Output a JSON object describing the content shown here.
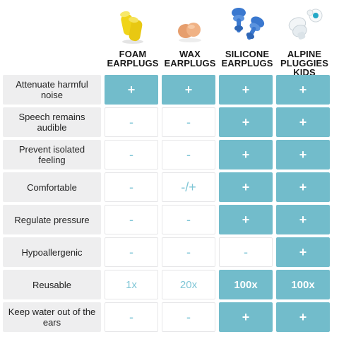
{
  "products": [
    {
      "name": "FOAM EARPLUGS",
      "icon": "foam-earplug-icon",
      "color": "#f2dc2a"
    },
    {
      "name": "WAX EARPLUGS",
      "icon": "wax-earplug-icon",
      "color": "#e9a77a"
    },
    {
      "name": "SILICONE EARPLUGS",
      "icon": "silicone-earplug-icon",
      "color": "#3f7fd1"
    },
    {
      "name": "ALPINE PLUGGIES KIDS",
      "icon": "alpine-pluggies-icon",
      "color": "#e8eef2"
    }
  ],
  "colors": {
    "highlight": "#72bccb",
    "symbol_light": "#7fc6d6",
    "feature_bg": "#eeeeef"
  },
  "rows": [
    {
      "feature": "Attenuate harmful noise",
      "values": [
        {
          "text": "+",
          "highlight": true
        },
        {
          "text": "+",
          "highlight": true
        },
        {
          "text": "+",
          "highlight": true
        },
        {
          "text": "+",
          "highlight": true
        }
      ]
    },
    {
      "feature": "Speech remains audible",
      "values": [
        {
          "text": "-",
          "highlight": false
        },
        {
          "text": "-",
          "highlight": false
        },
        {
          "text": "+",
          "highlight": true
        },
        {
          "text": "+",
          "highlight": true
        }
      ]
    },
    {
      "feature": "Prevent isolated feeling",
      "values": [
        {
          "text": "-",
          "highlight": false
        },
        {
          "text": "-",
          "highlight": false
        },
        {
          "text": "+",
          "highlight": true
        },
        {
          "text": "+",
          "highlight": true
        }
      ]
    },
    {
      "feature": "Comfortable",
      "values": [
        {
          "text": "-",
          "highlight": false
        },
        {
          "text": "-/+",
          "highlight": false
        },
        {
          "text": "+",
          "highlight": true
        },
        {
          "text": "+",
          "highlight": true
        }
      ]
    },
    {
      "feature": "Regulate pressure",
      "values": [
        {
          "text": "-",
          "highlight": false
        },
        {
          "text": "-",
          "highlight": false
        },
        {
          "text": "+",
          "highlight": true
        },
        {
          "text": "+",
          "highlight": true
        }
      ]
    },
    {
      "feature": "Hypoallergenic",
      "values": [
        {
          "text": "-",
          "highlight": false
        },
        {
          "text": "-",
          "highlight": false
        },
        {
          "text": "-",
          "highlight": false
        },
        {
          "text": "+",
          "highlight": true
        }
      ]
    },
    {
      "feature": "Reusable",
      "values": [
        {
          "text": "1x",
          "highlight": false
        },
        {
          "text": "20x",
          "highlight": false
        },
        {
          "text": "100x",
          "highlight": true
        },
        {
          "text": "100x",
          "highlight": true
        }
      ]
    },
    {
      "feature": "Keep water out of the ears",
      "values": [
        {
          "text": "-",
          "highlight": false
        },
        {
          "text": "-",
          "highlight": false
        },
        {
          "text": "+",
          "highlight": true
        },
        {
          "text": "+",
          "highlight": true
        }
      ]
    }
  ]
}
